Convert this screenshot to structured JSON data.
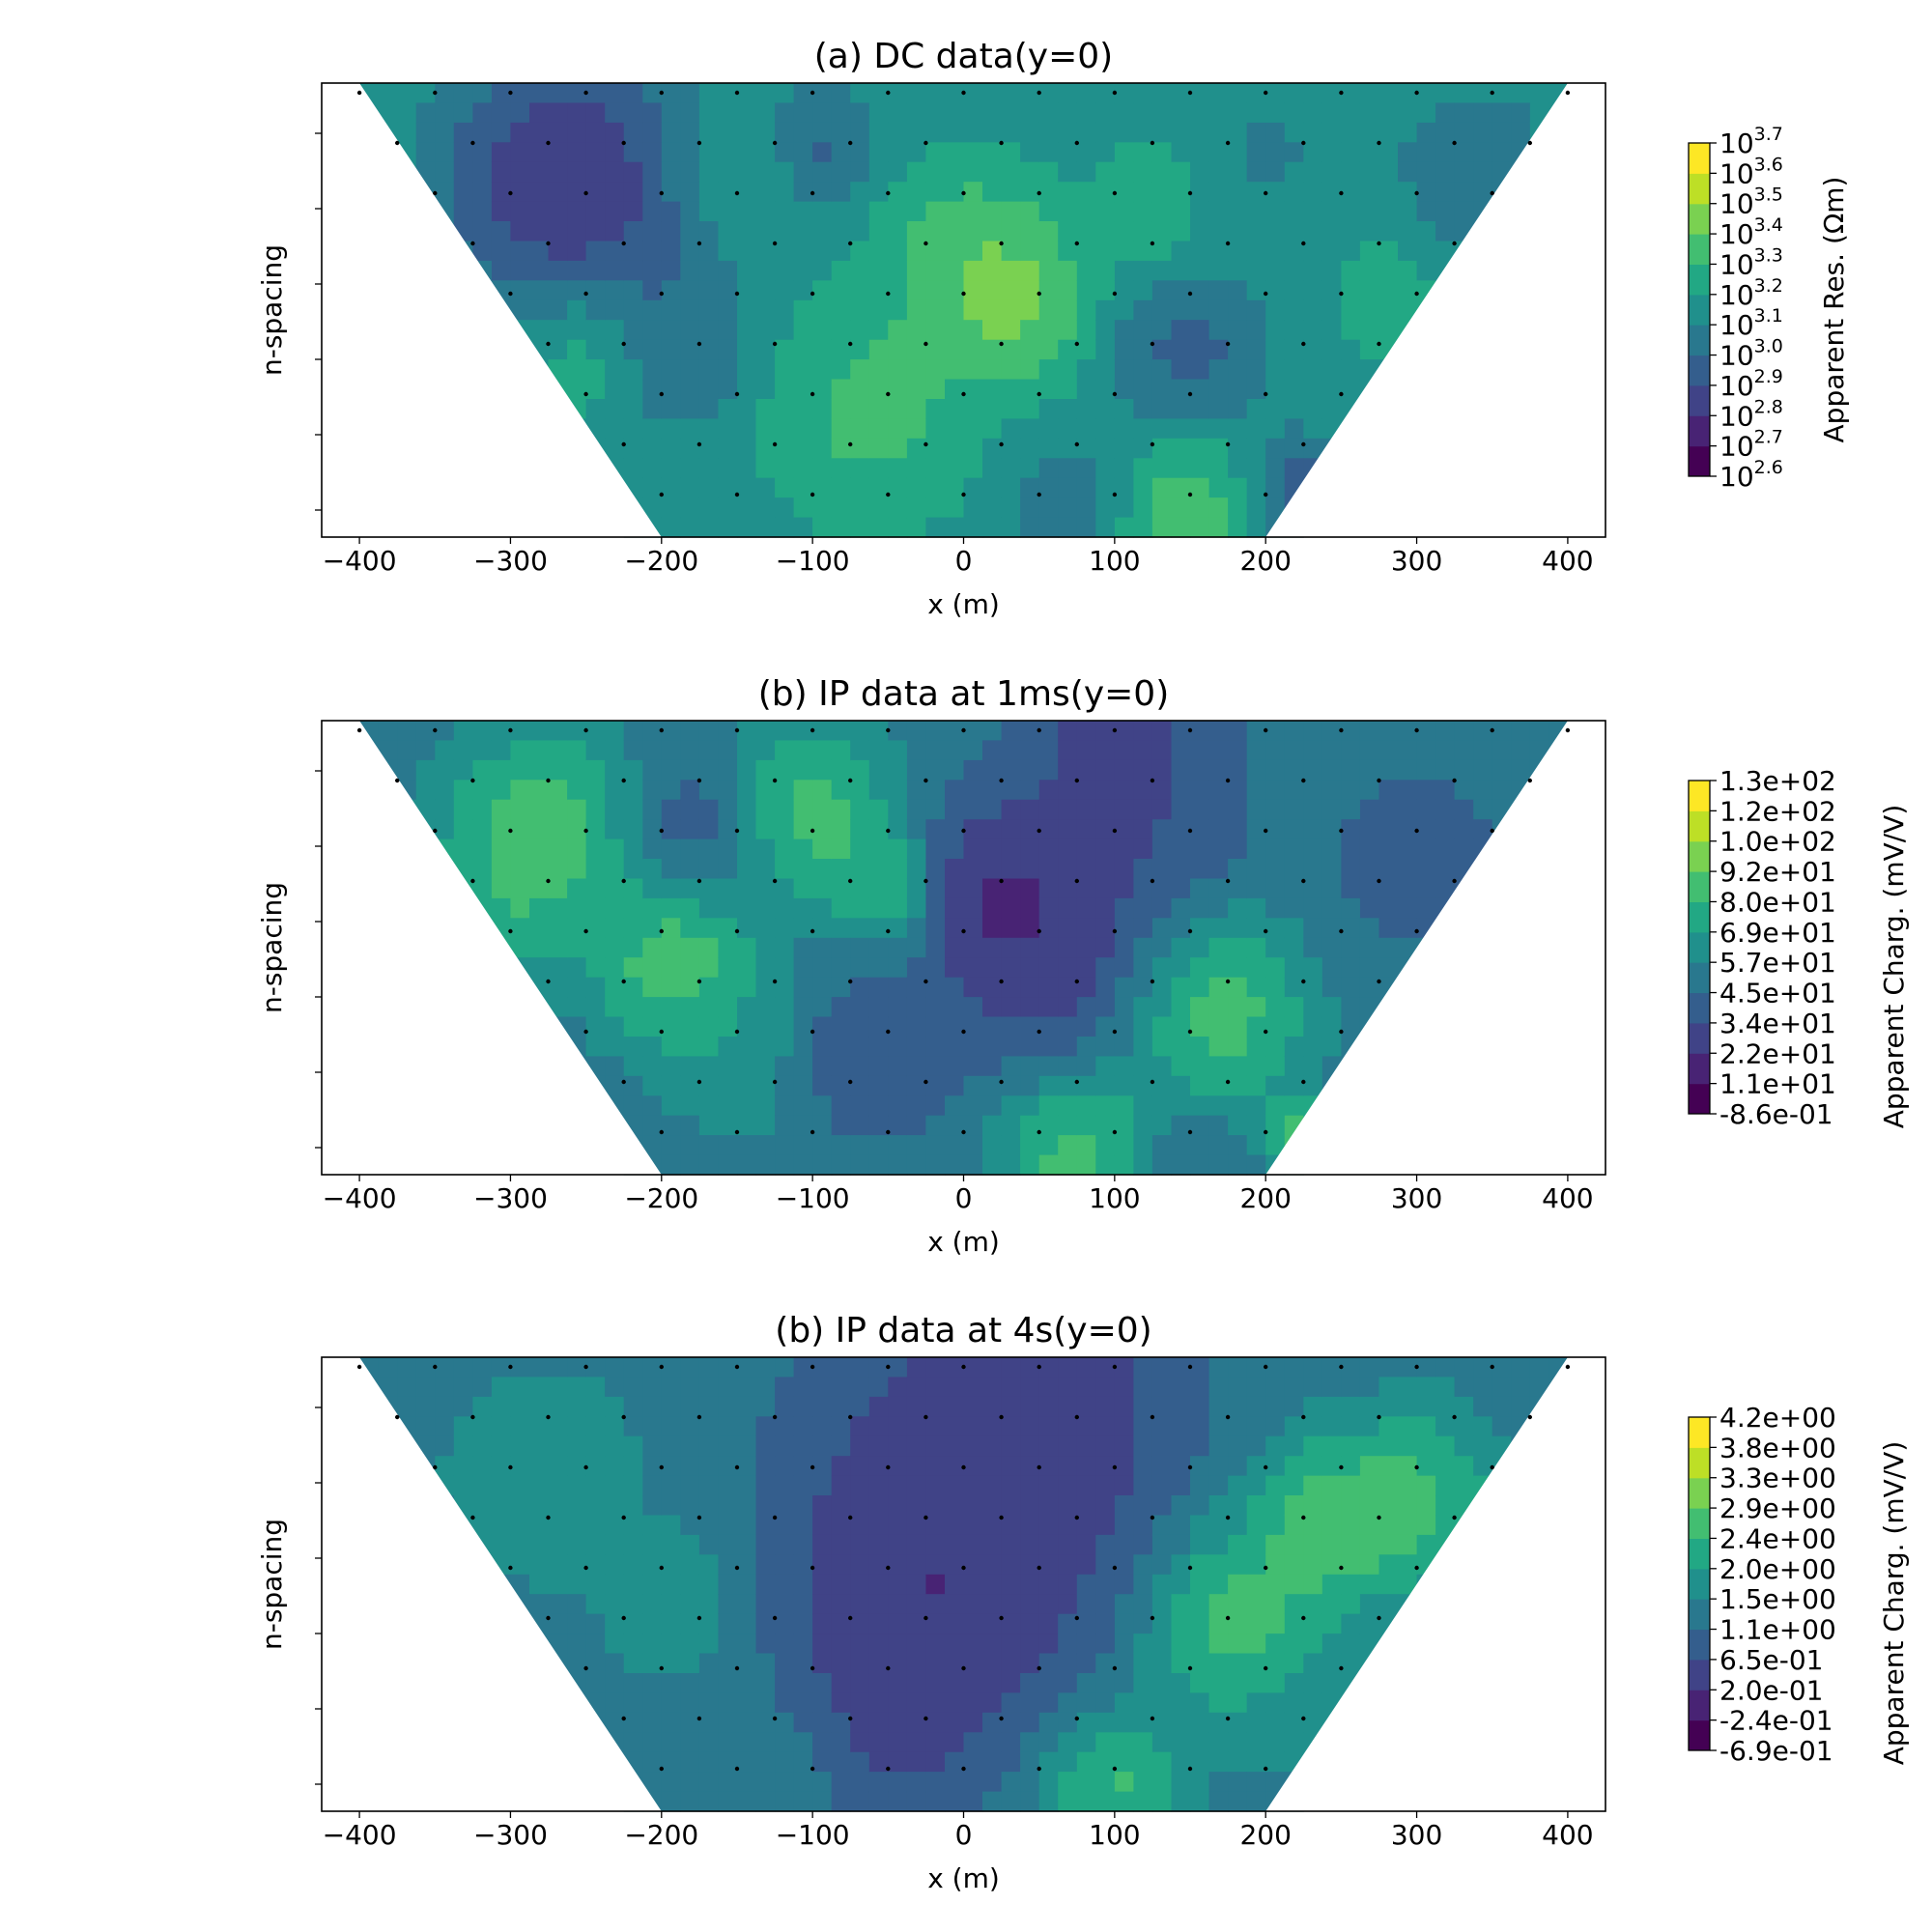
{
  "chart_data": [
    {
      "type": "heatmap",
      "title": "(a) DC data(y=0)",
      "xlabel": "x (m)",
      "ylabel": "n-spacing",
      "xlim": [
        -425,
        425
      ],
      "xticks": [
        -400,
        -300,
        -200,
        -100,
        0,
        100,
        200,
        300,
        400
      ],
      "xtick_labels": [
        "−400",
        "−300",
        "−200",
        "−100",
        "0",
        "100",
        "200",
        "300",
        "400"
      ],
      "colorbar": {
        "label": "Apparent Res. (Ωm)",
        "log": true,
        "ticks": [
          {
            "base": "10",
            "exp": "3.7"
          },
          {
            "base": "10",
            "exp": "3.6"
          },
          {
            "base": "10",
            "exp": "3.5"
          },
          {
            "base": "10",
            "exp": "3.4"
          },
          {
            "base": "10",
            "exp": "3.3"
          },
          {
            "base": "10",
            "exp": "3.2"
          },
          {
            "base": "10",
            "exp": "3.1"
          },
          {
            "base": "10",
            "exp": "3.0"
          },
          {
            "base": "10",
            "exp": "2.9"
          },
          {
            "base": "10",
            "exp": "2.8"
          },
          {
            "base": "10",
            "exp": "2.7"
          },
          {
            "base": "10",
            "exp": "2.6"
          }
        ],
        "range": [
          2.6,
          3.7
        ]
      },
      "blobs": [
        {
          "x": -270,
          "n": 1.5,
          "v": 0.0,
          "r": 60
        },
        {
          "x": -240,
          "n": 2.0,
          "v": 0.1,
          "r": 70
        },
        {
          "x": -150,
          "n": 1.3,
          "v": 0.68,
          "r": 45
        },
        {
          "x": -100,
          "n": 0.9,
          "v": 0.15,
          "r": 30
        },
        {
          "x": 30,
          "n": 4.0,
          "v": 0.98,
          "r": 45
        },
        {
          "x": 0,
          "n": 3.0,
          "v": 0.82,
          "r": 50
        },
        {
          "x": -60,
          "n": 6.3,
          "v": 0.82,
          "r": 60
        },
        {
          "x": 150,
          "n": 8.6,
          "v": 0.88,
          "r": 45
        },
        {
          "x": -250,
          "n": 5.0,
          "v": 0.72,
          "r": 40
        },
        {
          "x": -190,
          "n": 5.0,
          "v": 0.25,
          "r": 40
        },
        {
          "x": 150,
          "n": 5.0,
          "v": 0.18,
          "r": 40
        },
        {
          "x": 220,
          "n": 8.0,
          "v": 0.1,
          "r": 30
        },
        {
          "x": 280,
          "n": 4.0,
          "v": 0.65,
          "r": 40
        },
        {
          "x": 125,
          "n": 2.0,
          "v": 0.72,
          "r": 35
        },
        {
          "x": 340,
          "n": 1.5,
          "v": 0.25,
          "r": 40
        },
        {
          "x": 70,
          "n": 8.2,
          "v": 0.32,
          "r": 35
        },
        {
          "x": 200,
          "n": 1.0,
          "v": 0.4,
          "r": 50
        }
      ],
      "base_value": 0.5
    },
    {
      "type": "heatmap",
      "title": "(b) IP data at 1ms(y=0)",
      "xlabel": "x (m)",
      "ylabel": "n-spacing",
      "xlim": [
        -425,
        425
      ],
      "xticks": [
        -400,
        -300,
        -200,
        -100,
        0,
        100,
        200,
        300,
        400
      ],
      "xtick_labels": [
        "−400",
        "−300",
        "−200",
        "−100",
        "0",
        "100",
        "200",
        "300",
        "400"
      ],
      "colorbar": {
        "label": "Apparent Charg. (mV/V)",
        "log": false,
        "ticks": [
          "1.3e+02",
          "1.2e+02",
          "1.0e+02",
          "9.2e+01",
          "8.0e+01",
          "6.9e+01",
          "5.7e+01",
          "4.5e+01",
          "3.4e+01",
          "2.2e+01",
          "1.1e+01",
          "-8.6e-01"
        ],
        "range": [
          -0.86,
          130
        ]
      },
      "blobs": [
        {
          "x": -280,
          "n": 2.0,
          "v": 0.95,
          "r": 55
        },
        {
          "x": -310,
          "n": 3.5,
          "v": 0.7,
          "r": 40
        },
        {
          "x": -190,
          "n": 4.5,
          "v": 0.95,
          "r": 45
        },
        {
          "x": -100,
          "n": 1.5,
          "v": 0.92,
          "r": 45
        },
        {
          "x": -50,
          "n": 3.0,
          "v": 0.88,
          "r": 30
        },
        {
          "x": 50,
          "n": 4.0,
          "v": 0.0,
          "r": 65
        },
        {
          "x": 20,
          "n": 3.0,
          "v": 0.05,
          "r": 45
        },
        {
          "x": 170,
          "n": 5.5,
          "v": 0.92,
          "r": 50
        },
        {
          "x": 80,
          "n": 8.5,
          "v": 0.95,
          "r": 45
        },
        {
          "x": 220,
          "n": 8.0,
          "v": 0.9,
          "r": 20
        },
        {
          "x": -180,
          "n": 1.8,
          "v": 0.2,
          "r": 40
        },
        {
          "x": -60,
          "n": 6.5,
          "v": 0.18,
          "r": 45
        },
        {
          "x": 120,
          "n": 1.5,
          "v": 0.2,
          "r": 60
        },
        {
          "x": 300,
          "n": 2.5,
          "v": 0.25,
          "r": 60
        },
        {
          "x": 100,
          "n": 0.0,
          "v": 0.1,
          "r": 60
        },
        {
          "x": -150,
          "n": 6.5,
          "v": 0.6,
          "r": 40
        },
        {
          "x": 140,
          "n": 9.0,
          "v": 0.25,
          "r": 40
        }
      ],
      "base_value": 0.42
    },
    {
      "type": "heatmap",
      "title": "(b) IP data at 4s(y=0)",
      "xlabel": "x (m)",
      "ylabel": "n-spacing",
      "xlim": [
        -425,
        425
      ],
      "xticks": [
        -400,
        -300,
        -200,
        -100,
        0,
        100,
        200,
        300,
        400
      ],
      "xtick_labels": [
        "−400",
        "−300",
        "−200",
        "−100",
        "0",
        "100",
        "200",
        "300",
        "400"
      ],
      "colorbar": {
        "label": "Apparent Charg. (mV/V)",
        "log": false,
        "ticks": [
          "4.2e+00",
          "3.8e+00",
          "3.3e+00",
          "2.9e+00",
          "2.4e+00",
          "2.0e+00",
          "1.5e+00",
          "1.1e+00",
          "6.5e-01",
          "2.0e-01",
          "-2.4e-01",
          "-6.9e-01"
        ],
        "range": [
          -0.69,
          4.2
        ]
      },
      "blobs": [
        {
          "x": -20,
          "n": 4.5,
          "v": 0.0,
          "r": 85
        },
        {
          "x": 0,
          "n": 2.0,
          "v": 0.1,
          "r": 100
        },
        {
          "x": -50,
          "n": 7.0,
          "v": 0.1,
          "r": 50
        },
        {
          "x": 180,
          "n": 5.0,
          "v": 0.92,
          "r": 50
        },
        {
          "x": 240,
          "n": 3.0,
          "v": 0.92,
          "r": 45
        },
        {
          "x": 300,
          "n": 2.5,
          "v": 0.88,
          "r": 45
        },
        {
          "x": 100,
          "n": 8.3,
          "v": 0.88,
          "r": 40
        },
        {
          "x": -280,
          "n": 2.0,
          "v": 0.65,
          "r": 50
        },
        {
          "x": -190,
          "n": 4.5,
          "v": 0.62,
          "r": 40
        },
        {
          "x": 250,
          "n": 7.0,
          "v": 0.5,
          "r": 50
        },
        {
          "x": -120,
          "n": 8.0,
          "v": 0.45,
          "r": 45
        },
        {
          "x": 60,
          "n": 0.5,
          "v": 0.1,
          "r": 80
        }
      ],
      "base_value": 0.42
    }
  ]
}
